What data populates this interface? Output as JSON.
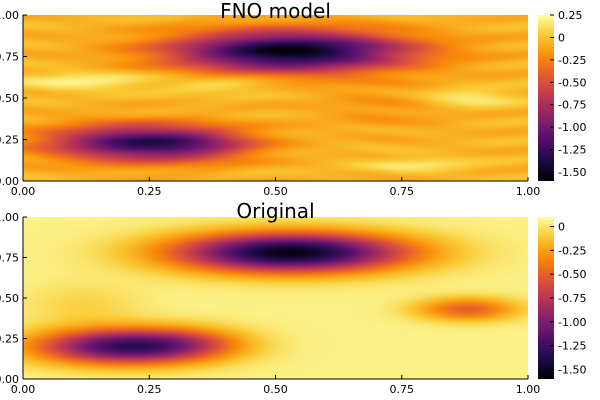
{
  "chart_data": [
    {
      "type": "heatmap",
      "title": "FNO model",
      "xlim": [
        0,
        1
      ],
      "ylim": [
        0,
        1
      ],
      "x_ticks": [
        "0.00",
        "0.25",
        "0.50",
        "0.75",
        "1.00"
      ],
      "y_ticks": [
        "0.00",
        "0.25",
        "0.50",
        "0.75",
        "1.00"
      ],
      "colorbar_range": [
        -1.6,
        0.25
      ],
      "colorbar_ticks": [
        {
          "value": 0.25,
          "label": "0.25"
        },
        {
          "value": 0.0,
          "label": "0"
        },
        {
          "value": -0.25,
          "label": "-0.25"
        },
        {
          "value": -0.5,
          "label": "-0.50"
        },
        {
          "value": -0.75,
          "label": "-0.75"
        },
        {
          "value": -1.0,
          "label": "-1.00"
        },
        {
          "value": -1.25,
          "label": "-1.25"
        },
        {
          "value": -1.5,
          "label": "-1.50"
        }
      ],
      "background_value": -0.05,
      "features": [
        {
          "x": 0.53,
          "y": 0.78,
          "sx": 0.16,
          "sy": 0.085,
          "amplitude": -1.5
        },
        {
          "x": 0.22,
          "y": 0.23,
          "sx": 0.12,
          "sy": 0.075,
          "amplitude": -1.1
        },
        {
          "x": 0.35,
          "y": 0.22,
          "sx": 0.09,
          "sy": 0.07,
          "amplitude": -0.4
        },
        {
          "x": 0.12,
          "y": 0.6,
          "sx": 0.1,
          "sy": 0.04,
          "amplitude": 0.25
        },
        {
          "x": 0.4,
          "y": 0.58,
          "sx": 0.08,
          "sy": 0.035,
          "amplitude": 0.2
        },
        {
          "x": 0.88,
          "y": 0.5,
          "sx": 0.07,
          "sy": 0.04,
          "amplitude": 0.25
        },
        {
          "x": 0.78,
          "y": 0.1,
          "sx": 0.08,
          "sy": 0.03,
          "amplitude": 0.2
        },
        {
          "x": 0.72,
          "y": 0.45,
          "sx": 0.1,
          "sy": 0.1,
          "amplitude": -0.12
        }
      ],
      "streak_amplitude": 0.06
    },
    {
      "type": "heatmap",
      "title": "Original",
      "xlim": [
        0,
        1
      ],
      "ylim": [
        0,
        1
      ],
      "x_ticks": [
        "0.00",
        "0.25",
        "0.50",
        "0.75",
        "1.00"
      ],
      "y_ticks": [
        "0.00",
        "0.25",
        "0.50",
        "0.75",
        "1.00"
      ],
      "colorbar_range": [
        -1.6,
        0.1
      ],
      "colorbar_ticks": [
        {
          "value": 0.0,
          "label": "0"
        },
        {
          "value": -0.25,
          "label": "-0.25"
        },
        {
          "value": -0.5,
          "label": "-0.50"
        },
        {
          "value": -0.75,
          "label": "-0.75"
        },
        {
          "value": -1.0,
          "label": "-1.00"
        },
        {
          "value": -1.25,
          "label": "-1.25"
        },
        {
          "value": -1.5,
          "label": "-1.50"
        }
      ],
      "background_value": 0.05,
      "features": [
        {
          "x": 0.53,
          "y": 0.78,
          "sx": 0.16,
          "sy": 0.085,
          "amplitude": -1.6
        },
        {
          "x": 0.2,
          "y": 0.2,
          "sx": 0.12,
          "sy": 0.075,
          "amplitude": -1.3
        },
        {
          "x": 0.33,
          "y": 0.22,
          "sx": 0.08,
          "sy": 0.07,
          "amplitude": -0.3
        },
        {
          "x": 0.88,
          "y": 0.43,
          "sx": 0.07,
          "sy": 0.05,
          "amplitude": -0.55
        },
        {
          "x": 0.12,
          "y": 0.45,
          "sx": 0.08,
          "sy": 0.1,
          "amplitude": -0.12
        }
      ],
      "streak_amplitude": 0.0
    }
  ]
}
